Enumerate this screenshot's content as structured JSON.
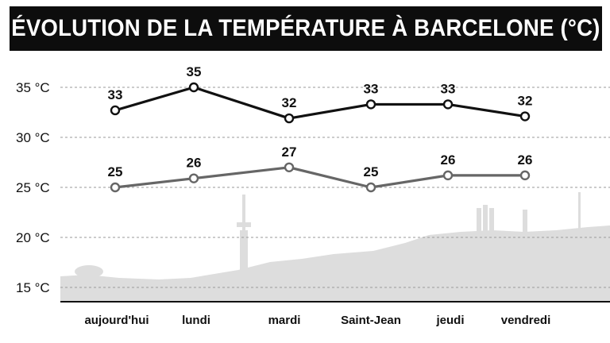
{
  "title": "ÉVOLUTION DE LA TEMPÉRATURE À BARCELONE (°C)",
  "colors": {
    "background": "#ffffff",
    "title_bar": "#0d0d0d",
    "series_max": "#111111",
    "series_min": "#666666",
    "skyline": "#dddddd"
  },
  "chart_data": {
    "type": "line",
    "title": "ÉVOLUTION DE LA TEMPÉRATURE À BARCELONE (°C)",
    "categories": [
      "aujourd'hui",
      "lundi",
      "mardi",
      "Saint-Jean",
      "jeudi",
      "vendredi"
    ],
    "series": [
      {
        "values": [
          33,
          35,
          32,
          33,
          33,
          32
        ],
        "point_values": [
          32.7,
          35.0,
          31.9,
          33.3,
          33.3,
          32.1
        ],
        "color": "#111111"
      },
      {
        "values": [
          25,
          26,
          27,
          25,
          26,
          26
        ],
        "point_values": [
          25.0,
          25.9,
          27.0,
          25.0,
          26.2,
          26.2
        ],
        "color": "#666666"
      }
    ],
    "yticks": [
      15,
      20,
      25,
      30,
      35
    ],
    "ytick_labels": [
      "15 °C",
      "20 °C",
      "25 °C",
      "30 °C",
      "35 °C"
    ],
    "ylim": [
      13.5,
      36.5
    ],
    "grid": true,
    "grid_style": "dashed horizontal",
    "background_decoration": "barcelona-skyline-silhouette"
  }
}
